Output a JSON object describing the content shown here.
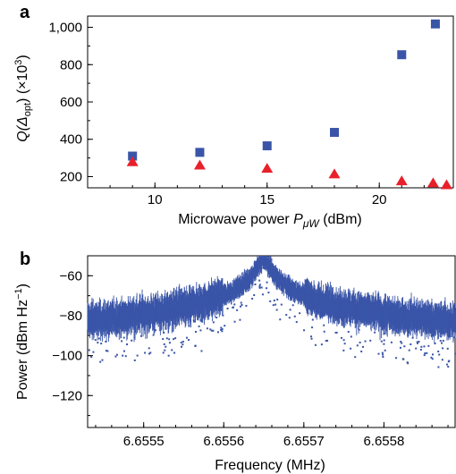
{
  "chart_data": [
    {
      "panel": "a",
      "type": "scatter",
      "xlabel_main": "Microwave power ",
      "xlabel_var": "P",
      "xlabel_sub": "μW",
      "xlabel_unit": " (dBm)",
      "ylabel_main": "Q(Δ",
      "ylabel_sub": "opt",
      "ylabel_after": ") (×10",
      "ylabel_sup": "3",
      "ylabel_end": ")",
      "xlim": [
        7,
        23.3
      ],
      "ylim": [
        140,
        1060
      ],
      "xticks": [
        10,
        15,
        20
      ],
      "xtick_labels": [
        "10",
        "15",
        "20"
      ],
      "yticks": [
        200,
        400,
        600,
        800,
        1000
      ],
      "ytick_labels": [
        "200",
        "400",
        "600",
        "800",
        "1,000"
      ],
      "series": [
        {
          "marker": "square",
          "color": "#3a55a8",
          "points": [
            [
              9,
              310
            ],
            [
              12,
              330
            ],
            [
              15,
              365
            ],
            [
              18,
              437
            ],
            [
              21,
              853
            ],
            [
              22.5,
              1018
            ]
          ]
        },
        {
          "marker": "triangle",
          "color": "#e8202a",
          "points": [
            [
              9,
              280
            ],
            [
              12,
              262
            ],
            [
              15,
              245
            ],
            [
              18,
              215
            ],
            [
              21,
              178
            ],
            [
              22.4,
              167
            ],
            [
              23,
              157
            ]
          ]
        }
      ]
    },
    {
      "panel": "b",
      "type": "scatter",
      "xlabel": "Frequency (MHz)",
      "ylabel_main": "Power (dBm Hz",
      "ylabel_sup": "−1",
      "ylabel_end": ")",
      "xlim": [
        6.65543,
        6.65589
      ],
      "ylim": [
        -136,
        -50
      ],
      "xticks": [
        6.6555,
        6.6556,
        6.6557,
        6.6558
      ],
      "xtick_labels": [
        "6.6555",
        "6.6556",
        "6.6557",
        "6.6558"
      ],
      "yticks": [
        -60,
        -80,
        -100,
        -120
      ],
      "ytick_labels": [
        "−60",
        "−80",
        "−100",
        "−120"
      ],
      "peak_center": 6.65565,
      "peak_level": -52,
      "floor_level": -115,
      "color": "#3a55a8"
    }
  ]
}
